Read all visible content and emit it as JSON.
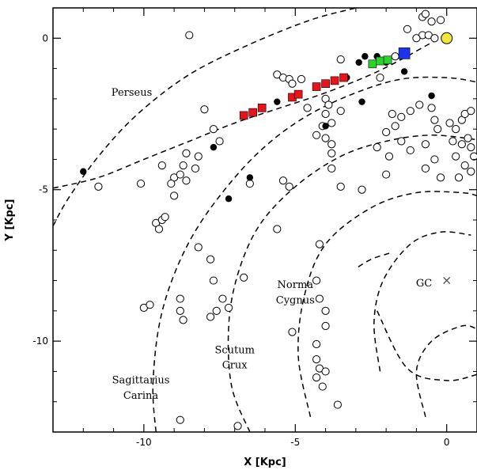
{
  "chart_data": {
    "type": "scatter",
    "xlabel": "X [Kpc]",
    "ylabel": "Y [Kpc]",
    "xlim": [
      -13,
      1
    ],
    "ylim": [
      -13,
      1
    ],
    "xticks": [
      -10,
      -5,
      0
    ],
    "yticks": [
      0,
      -5,
      -10
    ],
    "tick_labels_x": [
      "-10",
      "-5",
      "0"
    ],
    "tick_labels_y": [
      "0",
      "-5",
      "-10"
    ],
    "grid": false,
    "annotations": [
      {
        "text": "Perseus",
        "x": -10.4,
        "y": -1.9
      },
      {
        "text": "Norma",
        "x": -5.0,
        "y": -8.25
      },
      {
        "text": "Cygnus",
        "x": -5.0,
        "y": -8.75
      },
      {
        "text": "Scutum",
        "x": -7.0,
        "y": -10.4
      },
      {
        "text": "Crux",
        "x": -7.0,
        "y": -10.9
      },
      {
        "text": "Sagittarius",
        "x": -10.1,
        "y": -11.4
      },
      {
        "text": "Carina",
        "x": -10.1,
        "y": -11.9
      },
      {
        "text": "GC",
        "x": -0.75,
        "y": -8.2
      }
    ],
    "gc_marker": {
      "x": 0,
      "y": -8.0,
      "symbol": "×"
    },
    "sun": {
      "x": 0,
      "y": 0,
      "color": "#f2e63a"
    },
    "spiral_arms": [
      {
        "points": [
          [
            -13,
            -6.2
          ],
          [
            -12.5,
            -5.3
          ],
          [
            -11.5,
            -3.9
          ],
          [
            -10.2,
            -2.5
          ],
          [
            -8.5,
            -1.2
          ],
          [
            -6.5,
            -0.2
          ],
          [
            -4.5,
            0.6
          ],
          [
            -3.0,
            1.0
          ]
        ]
      },
      {
        "points": [
          [
            -13,
            -4.95
          ],
          [
            -11.5,
            -4.6
          ],
          [
            -10,
            -4.0
          ],
          [
            -8.5,
            -3.4
          ],
          [
            -7,
            -2.8
          ],
          [
            -5.5,
            -2.3
          ],
          [
            -4,
            -1.8
          ],
          [
            -2.5,
            -1.2
          ],
          [
            -1.5,
            -0.7
          ],
          [
            -0.5,
            -0.15
          ],
          [
            0,
            0.05
          ]
        ]
      },
      {
        "points": [
          [
            -9.6,
            -13
          ],
          [
            -9.7,
            -11.5
          ],
          [
            -9.5,
            -9.5
          ],
          [
            -9.0,
            -7.8
          ],
          [
            -8.2,
            -6.2
          ],
          [
            -7,
            -4.6
          ],
          [
            -5.8,
            -3.4
          ],
          [
            -4.5,
            -2.5
          ],
          [
            -3,
            -1.8
          ],
          [
            -1.5,
            -1.35
          ],
          [
            0,
            -1.3
          ],
          [
            1,
            -1.45
          ]
        ]
      },
      {
        "points": [
          [
            -6.5,
            -13
          ],
          [
            -7.1,
            -11.5
          ],
          [
            -7.2,
            -9.5
          ],
          [
            -6.9,
            -7.8
          ],
          [
            -6.2,
            -6.2
          ],
          [
            -5,
            -4.9
          ],
          [
            -3.5,
            -3.9
          ],
          [
            -2,
            -3.4
          ],
          [
            -0.5,
            -3.2
          ],
          [
            1,
            -3.35
          ]
        ]
      },
      {
        "points": [
          [
            -4.5,
            -12.5
          ],
          [
            -4.9,
            -10.5
          ],
          [
            -4.7,
            -8.5
          ],
          [
            -4.0,
            -6.8
          ],
          [
            -2.5,
            -5.6
          ],
          [
            -1,
            -5.1
          ],
          [
            0.5,
            -5.1
          ],
          [
            1,
            -5.2
          ]
        ]
      },
      {
        "points": [
          [
            -2.2,
            -11.0
          ],
          [
            -2.4,
            -9.4
          ],
          [
            -2.1,
            -8.0
          ],
          [
            -1.2,
            -6.8
          ],
          [
            -0.2,
            -6.4
          ],
          [
            0.8,
            -6.5
          ]
        ]
      },
      {
        "points": [
          [
            -0.7,
            -12.5
          ],
          [
            -1.0,
            -11.0
          ],
          [
            -0.5,
            -10.0
          ],
          [
            0.5,
            -9.5
          ],
          [
            1,
            -9.6
          ]
        ]
      },
      {
        "points": [
          [
            -2.3,
            -9.0
          ],
          [
            -1.3,
            -10.9
          ],
          [
            0,
            -11.3
          ],
          [
            1,
            -11.1
          ]
        ]
      },
      {
        "points": [
          [
            -1.9,
            -7.1
          ],
          [
            -2.5,
            -7.3
          ],
          [
            -3.0,
            -7.6
          ]
        ]
      }
    ],
    "series": [
      {
        "marker": "open-circle",
        "color": "#000000",
        "points": [
          [
            -8.5,
            0.1
          ],
          [
            -0.8,
            0.7
          ],
          [
            -0.7,
            0.8
          ],
          [
            -0.5,
            0.55
          ],
          [
            -0.2,
            0.6
          ],
          [
            -0.8,
            0.1
          ],
          [
            -0.6,
            0.1
          ],
          [
            -0.4,
            0.0
          ],
          [
            -1.3,
            0.3
          ],
          [
            -1.0,
            0.0
          ],
          [
            -3.5,
            -0.7
          ],
          [
            -1.7,
            -0.6
          ],
          [
            -5.6,
            -1.2
          ],
          [
            -5.4,
            -1.3
          ],
          [
            -5.2,
            -1.35
          ],
          [
            -4.8,
            -1.35
          ],
          [
            -5.1,
            -1.5
          ],
          [
            -2.2,
            -1.3
          ],
          [
            -4.0,
            -2.0
          ],
          [
            -4.6,
            -2.3
          ],
          [
            -3.9,
            -2.2
          ],
          [
            -3.5,
            -2.4
          ],
          [
            -4.0,
            -2.5
          ],
          [
            -8.0,
            -2.35
          ],
          [
            -7.7,
            -3.0
          ],
          [
            -7.5,
            -3.4
          ],
          [
            -8.2,
            -3.9
          ],
          [
            -8.6,
            -3.8
          ],
          [
            -4.1,
            -2.9
          ],
          [
            -3.8,
            -2.8
          ],
          [
            -4.0,
            -3.3
          ],
          [
            -3.8,
            -3.5
          ],
          [
            -3.8,
            -3.8
          ],
          [
            -4.3,
            -3.2
          ],
          [
            -1.5,
            -2.6
          ],
          [
            -1.2,
            -2.4
          ],
          [
            -0.9,
            -2.2
          ],
          [
            -0.5,
            -2.3
          ],
          [
            -0.4,
            -2.7
          ],
          [
            -1.8,
            -2.5
          ],
          [
            -1.7,
            -2.9
          ],
          [
            -2.0,
            -3.1
          ],
          [
            -1.5,
            -3.4
          ],
          [
            -1.2,
            -3.7
          ],
          [
            -0.7,
            -3.5
          ],
          [
            -0.3,
            -3.0
          ],
          [
            0.1,
            -2.8
          ],
          [
            0.3,
            -3.0
          ],
          [
            0.5,
            -2.7
          ],
          [
            0.6,
            -2.5
          ],
          [
            0.8,
            -2.4
          ],
          [
            0.2,
            -3.4
          ],
          [
            0.5,
            -3.5
          ],
          [
            0.7,
            -3.3
          ],
          [
            0.8,
            -3.6
          ],
          [
            0.9,
            -3.9
          ],
          [
            0.6,
            -4.2
          ],
          [
            0.4,
            -4.6
          ],
          [
            0.8,
            -4.4
          ],
          [
            0.3,
            -3.9
          ],
          [
            -2.0,
            -4.5
          ],
          [
            -1.9,
            -3.9
          ],
          [
            -2.3,
            -3.6
          ],
          [
            -3.8,
            -4.3
          ],
          [
            -3.5,
            -4.9
          ],
          [
            -2.8,
            -5.0
          ],
          [
            -0.7,
            -4.3
          ],
          [
            -0.4,
            -4.0
          ],
          [
            -0.2,
            -4.6
          ],
          [
            -9.4,
            -4.2
          ],
          [
            -9.0,
            -4.6
          ],
          [
            -8.8,
            -4.5
          ],
          [
            -8.6,
            -4.7
          ],
          [
            -8.3,
            -4.3
          ],
          [
            -8.7,
            -4.2
          ],
          [
            -9.1,
            -4.8
          ],
          [
            -10.1,
            -4.8
          ],
          [
            -11.5,
            -4.9
          ],
          [
            -9.0,
            -5.2
          ],
          [
            -6.5,
            -4.8
          ],
          [
            -5.4,
            -4.7
          ],
          [
            -5.2,
            -4.9
          ],
          [
            -9.6,
            -6.1
          ],
          [
            -9.4,
            -6.0
          ],
          [
            -9.3,
            -5.9
          ],
          [
            -9.5,
            -6.3
          ],
          [
            -5.6,
            -6.3
          ],
          [
            -8.2,
            -6.9
          ],
          [
            -7.8,
            -7.3
          ],
          [
            -6.7,
            -7.9
          ],
          [
            -4.2,
            -6.8
          ],
          [
            -10.0,
            -8.9
          ],
          [
            -9.8,
            -8.8
          ],
          [
            -8.8,
            -9.0
          ],
          [
            -8.7,
            -9.3
          ],
          [
            -8.8,
            -8.6
          ],
          [
            -7.8,
            -9.2
          ],
          [
            -7.6,
            -9.0
          ],
          [
            -7.4,
            -8.6
          ],
          [
            -7.2,
            -8.9
          ],
          [
            -7.7,
            -8.0
          ],
          [
            -4.3,
            -8.0
          ],
          [
            -4.2,
            -8.6
          ],
          [
            -4.0,
            -9.0
          ],
          [
            -4.0,
            -9.5
          ],
          [
            -4.3,
            -10.1
          ],
          [
            -4.3,
            -10.6
          ],
          [
            -4.2,
            -10.9
          ],
          [
            -4.0,
            -11.0
          ],
          [
            -4.3,
            -11.2
          ],
          [
            -4.1,
            -11.5
          ],
          [
            -5.1,
            -9.7
          ],
          [
            -3.6,
            -12.1
          ],
          [
            -8.8,
            -12.6
          ],
          [
            -6.9,
            -12.8
          ]
        ]
      },
      {
        "marker": "filled-circle",
        "color": "#000000",
        "points": [
          [
            -12.0,
            -4.4
          ],
          [
            -7.7,
            -3.6
          ],
          [
            -7.2,
            -5.3
          ],
          [
            -6.5,
            -4.6
          ],
          [
            -5.6,
            -2.1
          ],
          [
            -4.0,
            -2.9
          ],
          [
            -3.3,
            -1.3
          ],
          [
            -2.9,
            -0.8
          ],
          [
            -2.7,
            -0.6
          ],
          [
            -2.8,
            -2.1
          ],
          [
            -2.3,
            -0.6
          ],
          [
            -1.4,
            -1.1
          ],
          [
            -0.5,
            -1.9
          ],
          [
            -2.0,
            -0.8
          ]
        ]
      },
      {
        "marker": "filled-square",
        "color": "#e8141b",
        "points": [
          [
            -6.7,
            -2.55
          ],
          [
            -6.4,
            -2.45
          ],
          [
            -6.1,
            -2.3
          ],
          [
            -5.1,
            -1.95
          ],
          [
            -4.9,
            -1.85
          ],
          [
            -4.3,
            -1.6
          ],
          [
            -4.0,
            -1.5
          ],
          [
            -3.7,
            -1.4
          ],
          [
            -3.4,
            -1.3
          ]
        ]
      },
      {
        "marker": "filled-square",
        "color": "#2cd22c",
        "points": [
          [
            -2.45,
            -0.85
          ],
          [
            -2.2,
            -0.75
          ],
          [
            -1.95,
            -0.72
          ]
        ]
      },
      {
        "marker": "filled-square",
        "color": "#1e32f0",
        "points": [
          [
            -1.4,
            -0.5
          ]
        ]
      }
    ]
  }
}
